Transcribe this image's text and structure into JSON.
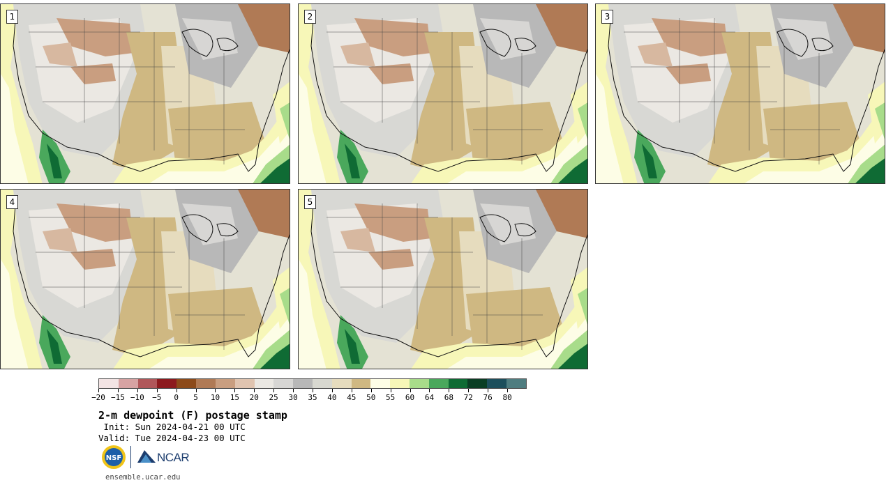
{
  "panels": [
    {
      "label": "1"
    },
    {
      "label": "2"
    },
    {
      "label": "3"
    },
    {
      "label": "4"
    },
    {
      "label": "5"
    }
  ],
  "colorbar": {
    "ticks": [
      "−20",
      "−15",
      "−10",
      "−5",
      "0",
      "5",
      "10",
      "15",
      "20",
      "25",
      "30",
      "35",
      "40",
      "45",
      "50",
      "55",
      "60",
      "64",
      "68",
      "72",
      "76",
      "80"
    ],
    "colors": [
      "#f3e4e4",
      "#d7a3a3",
      "#b0575a",
      "#8c1a1e",
      "#8c4a1a",
      "#b07a55",
      "#c99e80",
      "#e0c4b0",
      "#ebe8e3",
      "#d7d6d4",
      "#b8b8b8",
      "#d8d8d0",
      "#e6dcbe",
      "#cfb882",
      "#fdfde6",
      "#f7f7b8",
      "#a8dc8a",
      "#4aa85c",
      "#0f6b34",
      "#0a3e24",
      "#1d4f5c",
      "#4f7d80"
    ]
  },
  "title": "2-m dewpoint (F) postage stamp",
  "init": " Init: Sun 2024-04-21 00 UTC",
  "valid": "Valid: Tue 2024-04-23 00 UTC",
  "logos": {
    "nsf": "NSF",
    "ncar": "NCAR"
  },
  "footer_url": "ensemble.ucar.edu"
}
